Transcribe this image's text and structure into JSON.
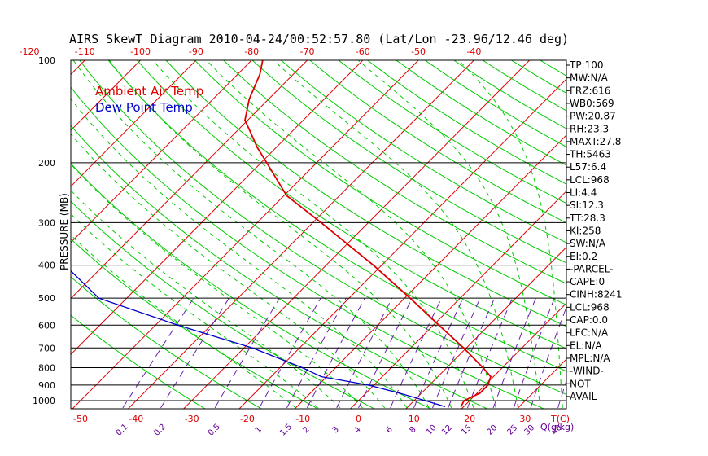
{
  "chart_data": {
    "type": "line",
    "subtype": "skew-t log-p diagram",
    "title": "AIRS SkewT Diagram 2010-04-24/00:52:57.80 (Lat/Lon -23.96/12.46 deg)",
    "ylabel": "PRESSURE (MB)",
    "y_scale": "log (inverted)",
    "ylim": [
      1050,
      100
    ],
    "pressure_ticks": [
      100,
      200,
      300,
      400,
      500,
      600,
      700,
      800,
      900,
      1000
    ],
    "pressure_tick_labels": [
      "100",
      "200",
      "300",
      "400",
      "500",
      "600",
      "700",
      "800",
      "900",
      "1000"
    ],
    "top_temperature_ticks": [
      -120,
      -110,
      -100,
      -90,
      -80,
      -70,
      -60,
      -50,
      -40
    ],
    "top_temperature_tick_labels": [
      "-120",
      "-110",
      "-100",
      "-90",
      "-80",
      "-70",
      "-60",
      "-50",
      "-40"
    ],
    "bottom_temperature_ticks": [
      -50,
      -40,
      -30,
      -20,
      -10,
      0,
      10,
      20,
      30
    ],
    "bottom_temperature_tick_labels": [
      "-50",
      "-40",
      "-30",
      "-20",
      "-10",
      "0",
      "10",
      "20",
      "30"
    ],
    "bottom_unit_label": "T(C)",
    "mixing_ratio_values": [
      0.1,
      0.2,
      0.5,
      1,
      1.5,
      2,
      3,
      4,
      6,
      8,
      10,
      12,
      15,
      20,
      25,
      30,
      40
    ],
    "mixing_ratio_labels": [
      "0.1",
      "0.2",
      "0.5",
      "1",
      "1.5",
      "2",
      "3",
      "4",
      "6",
      "8",
      "10",
      "12",
      "15",
      "20",
      "25",
      "30",
      "40"
    ],
    "mixing_ratio_unit_label": "Q(g/kg)",
    "isotherm_interval_c": 10,
    "grid": true,
    "legend_placement": "top-left",
    "series": [
      {
        "name": "Ambient Air Temp",
        "color": "#dd0000",
        "points": [
          {
            "p": 1040,
            "t": 19.5
          },
          {
            "p": 1000,
            "t": 19.0
          },
          {
            "p": 950,
            "t": 20.5
          },
          {
            "p": 900,
            "t": 20.5
          },
          {
            "p": 850,
            "t": 19.5
          },
          {
            "p": 800,
            "t": 16.5
          },
          {
            "p": 700,
            "t": 9.5
          },
          {
            "p": 600,
            "t": 1.0
          },
          {
            "p": 500,
            "t": -9.0
          },
          {
            "p": 400,
            "t": -21.5
          },
          {
            "p": 300,
            "t": -38.5
          },
          {
            "p": 250,
            "t": -49.5
          },
          {
            "p": 200,
            "t": -59.0
          },
          {
            "p": 180,
            "t": -63.5
          },
          {
            "p": 160,
            "t": -68.0
          },
          {
            "p": 150,
            "t": -70.5
          },
          {
            "p": 130,
            "t": -73.5
          },
          {
            "p": 110,
            "t": -76.0
          },
          {
            "p": 100,
            "t": -78.0
          }
        ]
      },
      {
        "name": "Dew Point Temp",
        "color": "#0000cc",
        "points": [
          {
            "p": 1040,
            "t": 16.5
          },
          {
            "p": 1000,
            "t": 12.0
          },
          {
            "p": 950,
            "t": 6.0
          },
          {
            "p": 900,
            "t": -1.0
          },
          {
            "p": 850,
            "t": -11.0
          },
          {
            "p": 800,
            "t": -16.0
          },
          {
            "p": 700,
            "t": -28.5
          },
          {
            "p": 600,
            "t": -46.0
          },
          {
            "p": 500,
            "t": -65.0
          },
          {
            "p": 400,
            "t": -77.0
          },
          {
            "p": 300,
            "t": -88.0
          },
          {
            "p": 250,
            "t": -95.0
          },
          {
            "p": 200,
            "t": -100.5
          },
          {
            "p": 160,
            "t": -108.5
          },
          {
            "p": 130,
            "t": -113.0
          },
          {
            "p": 100,
            "t": -117.0
          }
        ]
      }
    ]
  },
  "legend": {
    "ambient_label": "Ambient Air Temp",
    "ambient_color": "#dd0000",
    "dew_label": "Dew Point Temp",
    "dew_color": "#0000cc"
  },
  "indices": [
    "TP:100",
    "MW:N/A",
    "FRZ:616",
    "WB0:569",
    "PW:20.87",
    "RH:23.3",
    "MAXT:27.8",
    "TH:5463",
    "L57:6.4",
    "LCL:968",
    "LI:4.4",
    "SI:12.3",
    "TT:28.3",
    "KI:258",
    "SW:N/A",
    "EI:0.2",
    "-PARCEL-",
    "CAPE:0",
    "CINH:8241",
    "LCL:968",
    "CAP:0.0",
    "LFC:N/A",
    "EL:N/A",
    "MPL:N/A",
    "-WIND-",
    "NOT",
    "AVAIL"
  ],
  "colors": {
    "isotherm": "#dd0000",
    "dry_adiabat": "#00cc00",
    "moist_adiabat": "#00cc00",
    "mixing_ratio": "#6622aa",
    "axis_text_red": "#dd0000",
    "axis_text_purple": "#660099",
    "text": "#000000"
  }
}
